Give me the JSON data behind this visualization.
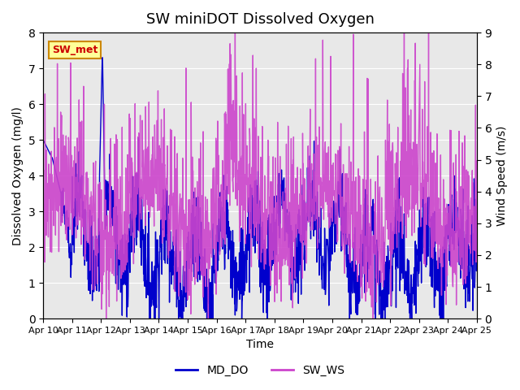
{
  "title": "SW miniDOT Dissolved Oxygen",
  "ylabel_left": "Dissolved Oxygen (mg/l)",
  "ylabel_right": "Wind Speed (m/s)",
  "xlabel": "Time",
  "ylim_left": [
    0.0,
    8.0
  ],
  "ylim_right": [
    0.0,
    9.0
  ],
  "yticks_left": [
    0.0,
    1.0,
    2.0,
    3.0,
    4.0,
    5.0,
    6.0,
    7.0,
    8.0
  ],
  "yticks_right": [
    0.0,
    1.0,
    2.0,
    3.0,
    4.0,
    5.0,
    6.0,
    7.0,
    8.0,
    9.0
  ],
  "xtick_labels": [
    "Apr 10",
    "Apr 11",
    "Apr 12",
    "Apr 13",
    "Apr 14",
    "Apr 15",
    "Apr 16",
    "Apr 17",
    "Apr 18",
    "Apr 19",
    "Apr 20",
    "Apr 21",
    "Apr 22",
    "Apr 23",
    "Apr 24",
    "Apr 25"
  ],
  "color_do": "#0000cc",
  "color_ws": "#cc44cc",
  "legend_label_do": "MD_DO",
  "legend_label_ws": "SW_WS",
  "annotation_text": "SW_met",
  "annotation_color": "#cc0000",
  "annotation_bg": "#ffff99",
  "annotation_border": "#cc8800",
  "background_color": "#e8e8e8",
  "linewidth": 1.0
}
